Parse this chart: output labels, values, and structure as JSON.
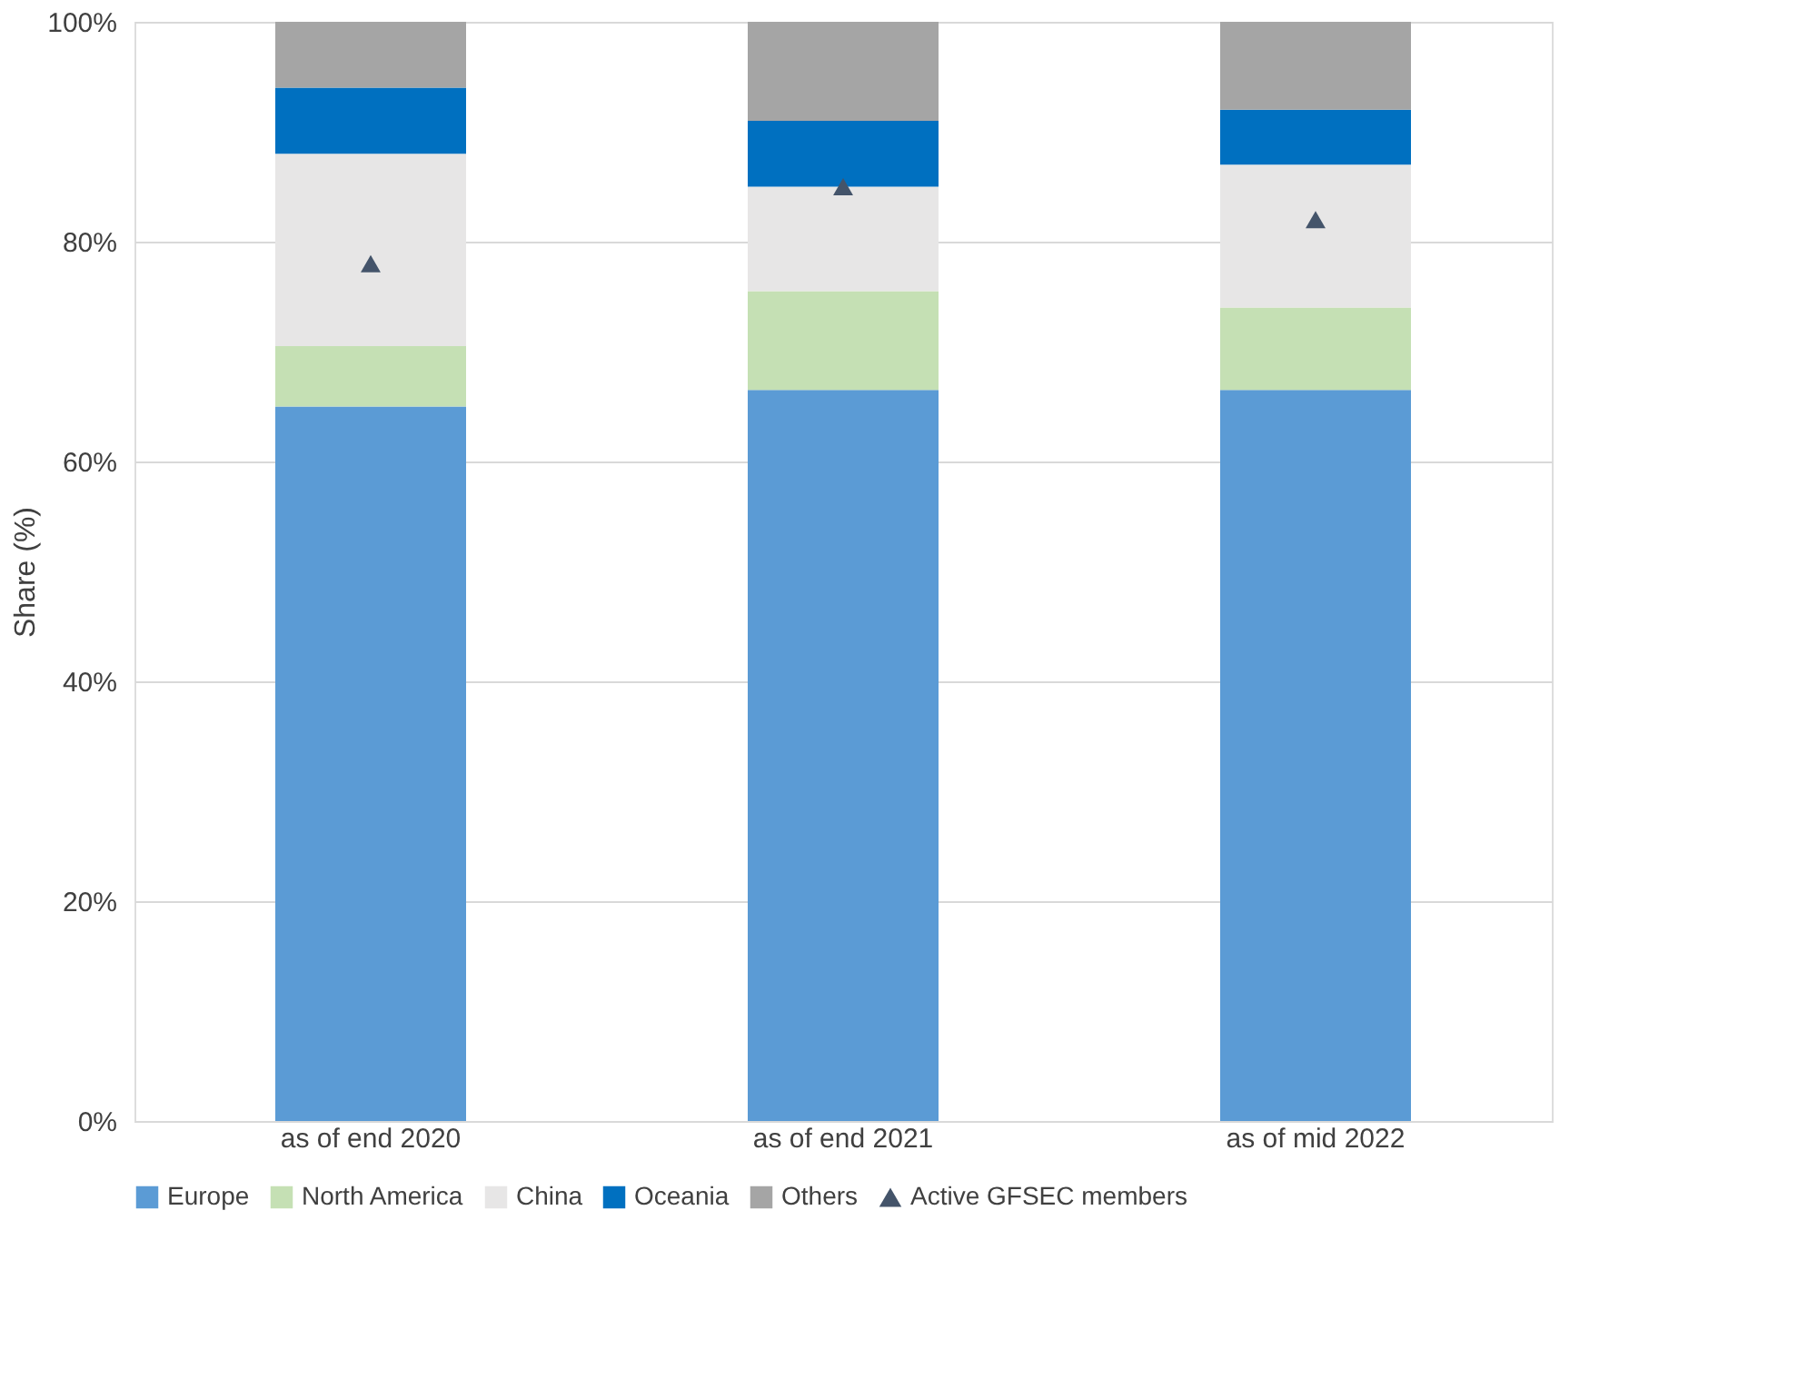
{
  "chart_data": {
    "type": "bar",
    "stacked": true,
    "ylabel": "Share (%)",
    "categories": [
      "as of end 2020",
      "as of end 2021",
      "as of mid 2022"
    ],
    "series": [
      {
        "name": "Europe",
        "color": "#5b9bd5",
        "values": [
          65,
          66.5,
          66.5
        ]
      },
      {
        "name": "North America",
        "color": "#c5e0b4",
        "values": [
          5.5,
          9,
          7.5
        ]
      },
      {
        "name": "China",
        "color": "#e7e6e6",
        "values": [
          17.5,
          9.5,
          13
        ]
      },
      {
        "name": "Oceania",
        "color": "#0070c0",
        "values": [
          6,
          6,
          5
        ]
      },
      {
        "name": "Others",
        "color": "#a5a5a5",
        "values": [
          6,
          9,
          8
        ]
      },
      {
        "name": "Active GFSEC members",
        "type": "scatter",
        "marker": "triangle",
        "color": "#44546a",
        "x": [
          "as of end 2020",
          "as of end 2021",
          "as of mid 2022"
        ],
        "values": [
          78,
          85,
          82
        ]
      }
    ],
    "ylim": [
      0,
      100
    ],
    "yticks": [
      {
        "value": 0,
        "label": "0%"
      },
      {
        "value": 20,
        "label": "20%"
      },
      {
        "value": 40,
        "label": "40%"
      },
      {
        "value": 60,
        "label": "60%"
      },
      {
        "value": 80,
        "label": "80%"
      },
      {
        "value": 100,
        "label": "100%"
      }
    ],
    "grid": "y",
    "legend": "bottom"
  }
}
